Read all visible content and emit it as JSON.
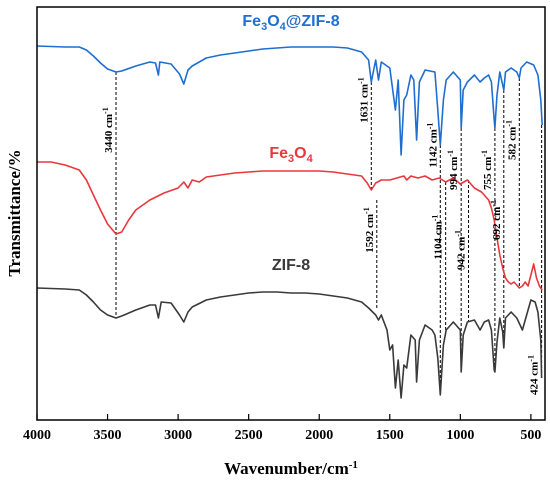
{
  "chart_data": {
    "type": "line",
    "xlabel_base": "Wavenumber/cm",
    "xlabel_sup": "-1",
    "ylabel": "Transmittance/%",
    "xlim": [
      4000,
      400
    ],
    "x_ticks": [
      "4000",
      "3500",
      "3000",
      "2500",
      "2000",
      "1500",
      "1000",
      "500"
    ],
    "x_tick_values": [
      4000,
      3500,
      3000,
      2500,
      2000,
      1500,
      1000,
      500
    ],
    "grid": false,
    "series": [
      {
        "name": "Fe3O4@ZIF-8",
        "label_main": "Fe",
        "label_sub1": "3",
        "label_mid": "O",
        "label_sub2": "4",
        "label_tail": "@ZIF-8",
        "color": "#1f6fd0",
        "points": [
          [
            4000,
            46
          ],
          [
            3800,
            47
          ],
          [
            3700,
            47
          ],
          [
            3650,
            50
          ],
          [
            3600,
            56
          ],
          [
            3550,
            63
          ],
          [
            3500,
            69
          ],
          [
            3440,
            72
          ],
          [
            3400,
            71
          ],
          [
            3300,
            66
          ],
          [
            3200,
            62
          ],
          [
            3160,
            63
          ],
          [
            3140,
            75
          ],
          [
            3130,
            62
          ],
          [
            3050,
            64
          ],
          [
            2990,
            74
          ],
          [
            2960,
            84
          ],
          [
            2930,
            70
          ],
          [
            2900,
            66
          ],
          [
            2800,
            58
          ],
          [
            2700,
            55
          ],
          [
            2600,
            53
          ],
          [
            2500,
            51
          ],
          [
            2400,
            49
          ],
          [
            2300,
            48
          ],
          [
            2200,
            47
          ],
          [
            2100,
            47
          ],
          [
            2000,
            47
          ],
          [
            1900,
            47
          ],
          [
            1800,
            48
          ],
          [
            1700,
            52
          ],
          [
            1650,
            60
          ],
          [
            1631,
            82
          ],
          [
            1600,
            60
          ],
          [
            1580,
            80
          ],
          [
            1560,
            62
          ],
          [
            1500,
            68
          ],
          [
            1460,
            110
          ],
          [
            1440,
            80
          ],
          [
            1420,
            155
          ],
          [
            1400,
            100
          ],
          [
            1380,
            95
          ],
          [
            1350,
            75
          ],
          [
            1330,
            80
          ],
          [
            1310,
            140
          ],
          [
            1290,
            82
          ],
          [
            1250,
            70
          ],
          [
            1180,
            72
          ],
          [
            1160,
            110
          ],
          [
            1142,
            145
          ],
          [
            1120,
            100
          ],
          [
            1100,
            80
          ],
          [
            1050,
            72
          ],
          [
            1000,
            80
          ],
          [
            994,
            128
          ],
          [
            980,
            90
          ],
          [
            950,
            82
          ],
          [
            900,
            75
          ],
          [
            860,
            82
          ],
          [
            830,
            78
          ],
          [
            800,
            75
          ],
          [
            780,
            82
          ],
          [
            760,
            120
          ],
          [
            755,
            128
          ],
          [
            740,
            95
          ],
          [
            720,
            72
          ],
          [
            692,
            90
          ],
          [
            680,
            72
          ],
          [
            640,
            68
          ],
          [
            600,
            72
          ],
          [
            582,
            78
          ],
          [
            570,
            68
          ],
          [
            530,
            62
          ],
          [
            480,
            65
          ],
          [
            450,
            75
          ],
          [
            430,
            100
          ],
          [
            420,
            125
          ]
        ]
      },
      {
        "name": "Fe3O4",
        "label_main": "Fe",
        "label_sub1": "3",
        "label_mid": "O",
        "label_sub2": "4",
        "label_tail": "",
        "color": "#e8383d",
        "points": [
          [
            4000,
            162
          ],
          [
            3900,
            162
          ],
          [
            3800,
            165
          ],
          [
            3700,
            170
          ],
          [
            3650,
            180
          ],
          [
            3600,
            195
          ],
          [
            3550,
            210
          ],
          [
            3500,
            224
          ],
          [
            3440,
            234
          ],
          [
            3400,
            232
          ],
          [
            3350,
            220
          ],
          [
            3300,
            210
          ],
          [
            3200,
            200
          ],
          [
            3100,
            193
          ],
          [
            3000,
            188
          ],
          [
            2960,
            182
          ],
          [
            2930,
            188
          ],
          [
            2900,
            180
          ],
          [
            2850,
            182
          ],
          [
            2800,
            177
          ],
          [
            2700,
            175
          ],
          [
            2600,
            173
          ],
          [
            2500,
            172
          ],
          [
            2400,
            171
          ],
          [
            2300,
            171
          ],
          [
            2200,
            171
          ],
          [
            2100,
            171
          ],
          [
            2000,
            171
          ],
          [
            1900,
            172
          ],
          [
            1800,
            174
          ],
          [
            1700,
            176
          ],
          [
            1660,
            183
          ],
          [
            1631,
            190
          ],
          [
            1600,
            183
          ],
          [
            1560,
            180
          ],
          [
            1500,
            180
          ],
          [
            1450,
            178
          ],
          [
            1400,
            176
          ],
          [
            1380,
            180
          ],
          [
            1350,
            176
          ],
          [
            1300,
            178
          ],
          [
            1250,
            176
          ],
          [
            1200,
            180
          ],
          [
            1150,
            178
          ],
          [
            1104,
            182
          ],
          [
            1050,
            178
          ],
          [
            1000,
            184
          ],
          [
            950,
            180
          ],
          [
            900,
            188
          ],
          [
            850,
            192
          ],
          [
            800,
            200
          ],
          [
            780,
            208
          ],
          [
            760,
            220
          ],
          [
            740,
            238
          ],
          [
            720,
            255
          ],
          [
            700,
            268
          ],
          [
            680,
            278
          ],
          [
            660,
            282
          ],
          [
            640,
            284
          ],
          [
            620,
            282
          ],
          [
            600,
            285
          ],
          [
            582,
            288
          ],
          [
            560,
            286
          ],
          [
            540,
            282
          ],
          [
            520,
            286
          ],
          [
            500,
            275
          ],
          [
            480,
            264
          ],
          [
            460,
            278
          ],
          [
            440,
            286
          ],
          [
            420,
            290
          ]
        ]
      },
      {
        "name": "ZIF-8",
        "label_main": "ZIF-8",
        "label_sub1": "",
        "label_mid": "",
        "label_sub2": "",
        "label_tail": "",
        "color": "#3a3a3a",
        "points": [
          [
            4000,
            288
          ],
          [
            3800,
            289
          ],
          [
            3700,
            290
          ],
          [
            3650,
            295
          ],
          [
            3600,
            302
          ],
          [
            3550,
            310
          ],
          [
            3500,
            315
          ],
          [
            3440,
            318
          ],
          [
            3400,
            316
          ],
          [
            3300,
            310
          ],
          [
            3200,
            305
          ],
          [
            3160,
            305
          ],
          [
            3140,
            318
          ],
          [
            3120,
            302
          ],
          [
            3050,
            303
          ],
          [
            2990,
            315
          ],
          [
            2960,
            322
          ],
          [
            2930,
            312
          ],
          [
            2900,
            307
          ],
          [
            2800,
            300
          ],
          [
            2700,
            297
          ],
          [
            2600,
            295
          ],
          [
            2500,
            293
          ],
          [
            2400,
            292
          ],
          [
            2300,
            292
          ],
          [
            2200,
            293
          ],
          [
            2100,
            293
          ],
          [
            2000,
            294
          ],
          [
            1900,
            296
          ],
          [
            1800,
            298
          ],
          [
            1700,
            302
          ],
          [
            1650,
            308
          ],
          [
            1600,
            315
          ],
          [
            1580,
            320
          ],
          [
            1560,
            315
          ],
          [
            1520,
            330
          ],
          [
            1500,
            350
          ],
          [
            1480,
            345
          ],
          [
            1460,
            388
          ],
          [
            1440,
            360
          ],
          [
            1420,
            398
          ],
          [
            1400,
            365
          ],
          [
            1380,
            368
          ],
          [
            1350,
            335
          ],
          [
            1320,
            340
          ],
          [
            1310,
            382
          ],
          [
            1290,
            340
          ],
          [
            1250,
            325
          ],
          [
            1200,
            330
          ],
          [
            1180,
            335
          ],
          [
            1160,
            358
          ],
          [
            1142,
            395
          ],
          [
            1120,
            345
          ],
          [
            1100,
            330
          ],
          [
            1050,
            322
          ],
          [
            1000,
            330
          ],
          [
            994,
            372
          ],
          [
            980,
            335
          ],
          [
            950,
            322
          ],
          [
            900,
            320
          ],
          [
            860,
            330
          ],
          [
            830,
            322
          ],
          [
            800,
            320
          ],
          [
            780,
            330
          ],
          [
            760,
            370
          ],
          [
            755,
            372
          ],
          [
            740,
            342
          ],
          [
            720,
            318
          ],
          [
            700,
            332
          ],
          [
            692,
            348
          ],
          [
            680,
            318
          ],
          [
            640,
            312
          ],
          [
            600,
            318
          ],
          [
            560,
            330
          ],
          [
            500,
            300
          ],
          [
            470,
            302
          ],
          [
            450,
            312
          ],
          [
            430,
            340
          ],
          [
            424,
            378
          ]
        ]
      }
    ],
    "annotations": [
      {
        "text": "3440 cm",
        "x": 3440,
        "from": 72,
        "to": 318,
        "label_y": 130,
        "upper": true
      },
      {
        "text": "1631 cm",
        "x": 1631,
        "from": 82,
        "to": 190,
        "label_y": 100,
        "upper": true
      },
      {
        "text": "1592 cm",
        "x": 1592,
        "from": 200,
        "to": 310,
        "label_y": 230,
        "upper": false
      },
      {
        "text": "1142 cm",
        "x": 1142,
        "from": 145,
        "to": 395,
        "label_y": 145,
        "upper": true
      },
      {
        "text": "1104 cm",
        "x": 1104,
        "from": 182,
        "to": 330,
        "label_y": 237,
        "upper": false
      },
      {
        "text": "994 cm",
        "x": 994,
        "from": 128,
        "to": 372,
        "label_y": 170,
        "upper": true
      },
      {
        "text": "942 cm",
        "x": 942,
        "from": 180,
        "to": 322,
        "label_y": 250,
        "upper": false
      },
      {
        "text": "755 cm",
        "x": 755,
        "from": 128,
        "to": 372,
        "label_y": 170,
        "upper": true
      },
      {
        "text": "692 cm",
        "x": 692,
        "from": 90,
        "to": 348,
        "label_y": 220,
        "upper": false
      },
      {
        "text": "582 cm",
        "x": 582,
        "from": 78,
        "to": 288,
        "label_y": 140,
        "upper": true
      },
      {
        "text": "424 cm",
        "x": 424,
        "from": 125,
        "to": 378,
        "label_y": 375,
        "upper": false
      }
    ]
  }
}
